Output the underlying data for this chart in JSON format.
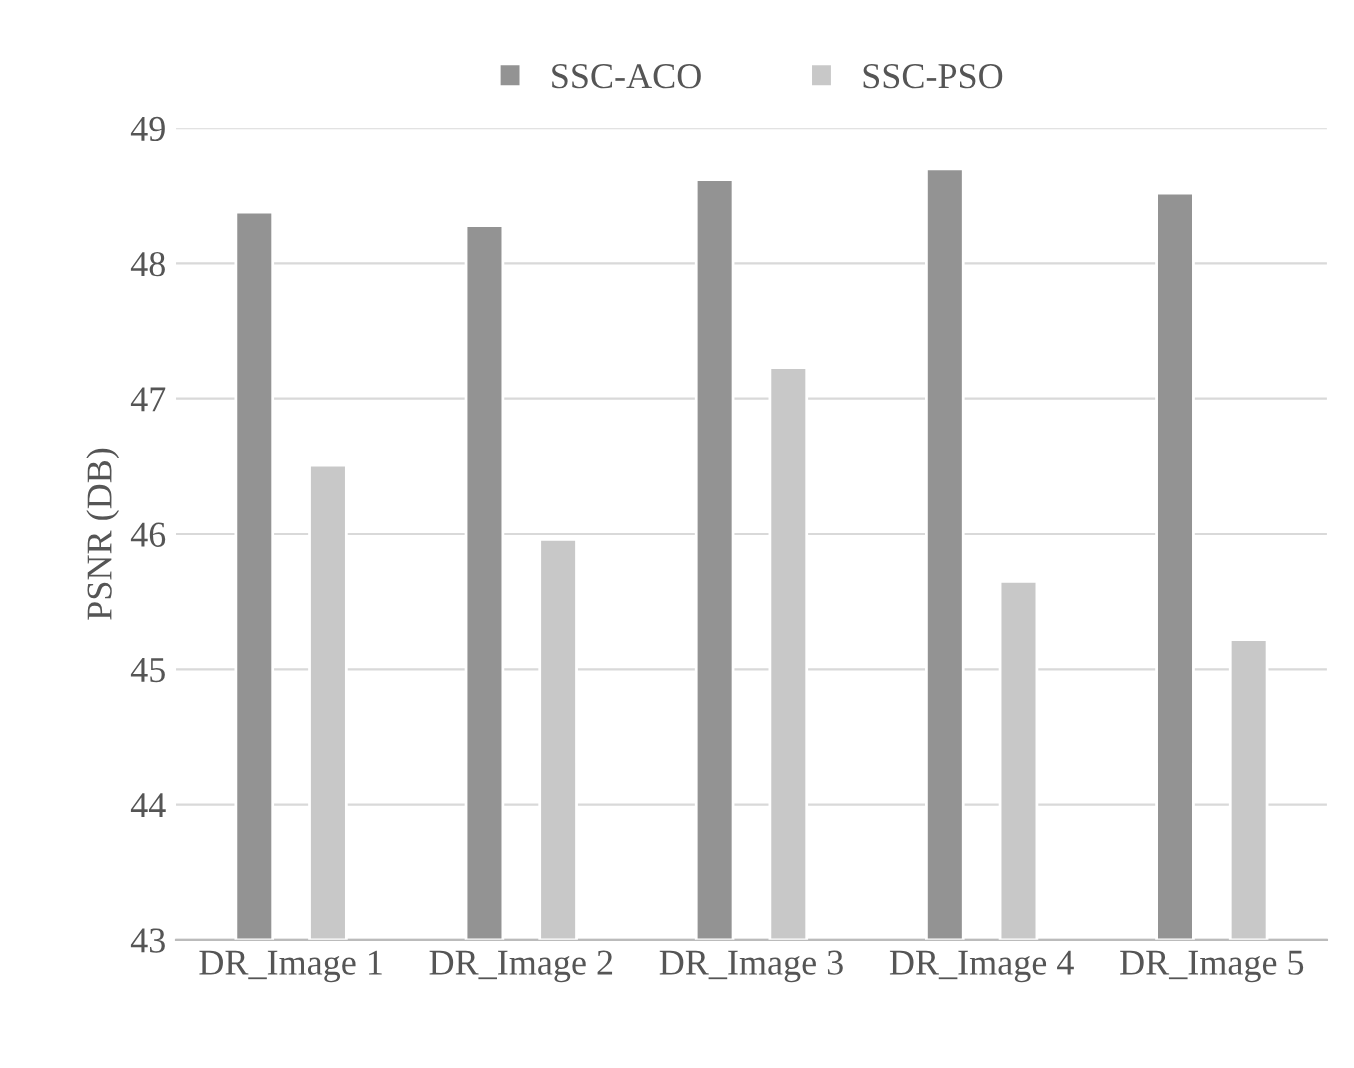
{
  "chart_data": {
    "type": "bar",
    "ylabel": "PSNR (DB)",
    "categories": [
      "DR_Image 1",
      "DR_Image 2",
      "DR_Image 3",
      "DR_Image 4",
      "DR_Image 5"
    ],
    "series": [
      {
        "name": "SSC-ACO",
        "color": "#939393",
        "values": [
          48.38,
          48.28,
          48.62,
          48.7,
          48.52
        ]
      },
      {
        "name": "SSC-PSO",
        "color": "#c8c8c8",
        "values": [
          46.51,
          45.96,
          47.23,
          45.65,
          45.22
        ]
      }
    ],
    "ylim": [
      43,
      49
    ],
    "yticks": [
      43,
      44,
      45,
      46,
      47,
      48,
      49
    ],
    "grid": "y",
    "legend": "top"
  }
}
